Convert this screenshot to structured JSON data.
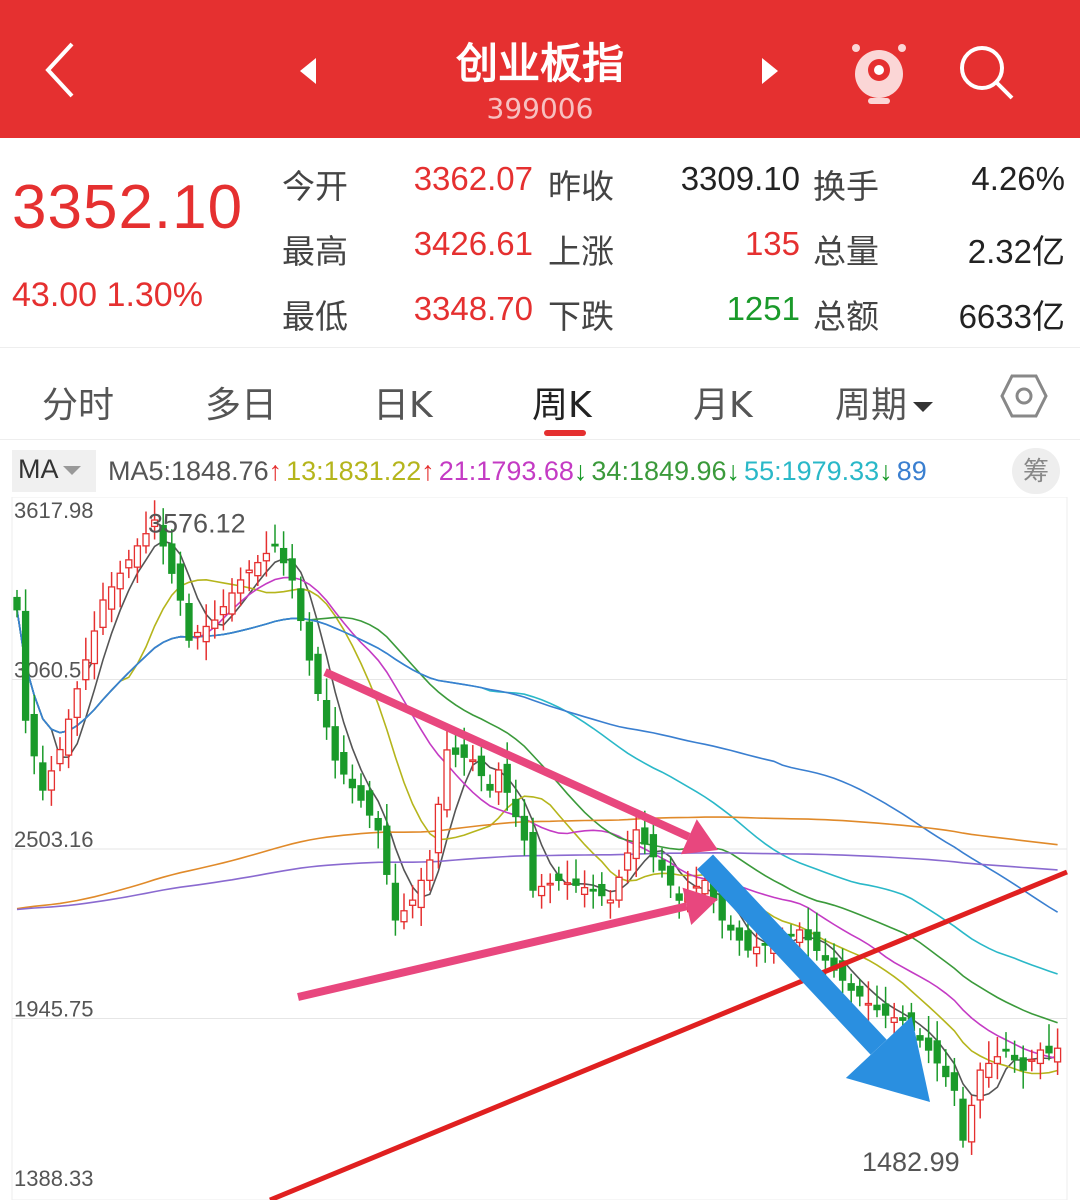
{
  "header": {
    "title": "创业板指",
    "code": "399006",
    "back_icon": "back-chevron-icon",
    "prev_icon": "prev-triangle-icon",
    "next_icon": "next-triangle-icon",
    "assistant_icon": "robot-assistant-icon",
    "search_icon": "search-icon",
    "color": "#e53030"
  },
  "quote": {
    "price": "3352.10",
    "change": "43.00",
    "change_pct": "1.30%",
    "fields": [
      {
        "label": "今开",
        "value": "3362.07",
        "color": "#e53030"
      },
      {
        "label": "昨收",
        "value": "3309.10",
        "color": "#222222"
      },
      {
        "label": "换手",
        "value": "4.26%",
        "color": "#222222"
      },
      {
        "label": "最高",
        "value": "3426.61",
        "color": "#e53030"
      },
      {
        "label": "上涨",
        "value": "135",
        "color": "#e53030"
      },
      {
        "label": "总量",
        "value": "2.32亿",
        "color": "#222222"
      },
      {
        "label": "最低",
        "value": "3348.70",
        "color": "#e53030"
      },
      {
        "label": "下跌",
        "value": "1251",
        "color": "#1a9a2a"
      },
      {
        "label": "总额",
        "value": "6633亿",
        "color": "#222222"
      }
    ]
  },
  "tabs": [
    {
      "label": "分时"
    },
    {
      "label": "多日"
    },
    {
      "label": "日K"
    },
    {
      "label": "周K",
      "selected": true
    },
    {
      "label": "月K"
    },
    {
      "label": "周期"
    }
  ],
  "ma": {
    "selector": "MA",
    "chip": "筹",
    "items": [
      {
        "text": "MA5:1848.76",
        "arrow": "↑",
        "color": "#555555",
        "arrow_color": "#e53030"
      },
      {
        "text": "13:1831.22",
        "arrow": "↑",
        "color": "#b5b51c",
        "arrow_color": "#e53030"
      },
      {
        "text": "21:1793.68",
        "arrow": "↓",
        "color": "#c43bc4",
        "arrow_color": "#1a9a2a"
      },
      {
        "text": "34:1849.96",
        "arrow": "↓",
        "color": "#3b9a3b",
        "arrow_color": "#1a9a2a"
      },
      {
        "text": "55:1979.33",
        "arrow": "↓",
        "color": "#2ab8c8",
        "arrow_color": "#1a9a2a"
      },
      {
        "text": "89",
        "arrow": "",
        "color": "#3a7fd0",
        "arrow_color": ""
      }
    ]
  },
  "chart_data": {
    "type": "candlestick",
    "yticks": [
      "3617.98",
      "3060.57",
      "2503.16",
      "1945.75",
      "1388.33"
    ],
    "ylim": [
      1388.33,
      3617.98
    ],
    "high_label": "3576.12",
    "low_label": "1482.99",
    "up_color": "#e53030",
    "down_color": "#1a9a2a",
    "ma_periods": [
      5,
      13,
      21,
      34,
      55,
      89
    ],
    "ma_colors": [
      "#555555",
      "#b5b51c",
      "#c43bc4",
      "#3b9a3b",
      "#2ab8c8",
      "#3a7fd0"
    ],
    "closes": [
      3290,
      2927,
      2810,
      2697,
      2760,
      2830,
      2930,
      3030,
      3125,
      3220,
      3322,
      3365,
      3410,
      3454,
      3500,
      3540,
      3585,
      3500,
      3410,
      3322,
      3190,
      3215,
      3235,
      3256,
      3300,
      3345,
      3388,
      3420,
      3445,
      3475,
      3503,
      3445,
      3388,
      3255,
      3125,
      3015,
      2905,
      2796,
      2750,
      2705,
      2664,
      2615,
      2566,
      2420,
      2270,
      2300,
      2335,
      2400,
      2467,
      2650,
      2829,
      2815,
      2805,
      2796,
      2745,
      2697,
      2763,
      2690,
      2610,
      2533,
      2368,
      2380,
      2390,
      2400,
      2392,
      2384,
      2376,
      2368,
      2350,
      2335,
      2410,
      2490,
      2566,
      2520,
      2478,
      2434,
      2385,
      2335,
      2358,
      2380,
      2400,
      2335,
      2270,
      2237,
      2204,
      2171,
      2180,
      2190,
      2197,
      2204,
      2220,
      2237,
      2205,
      2170,
      2138,
      2105,
      2072,
      2039,
      2020,
      1995,
      1975,
      1957,
      1948,
      1940,
      1907,
      1875,
      1842,
      1800,
      1755,
      1710,
      1546,
      1660,
      1776,
      1798,
      1820,
      1842,
      1810,
      1776,
      1810,
      1842,
      1833,
      1848
    ]
  }
}
